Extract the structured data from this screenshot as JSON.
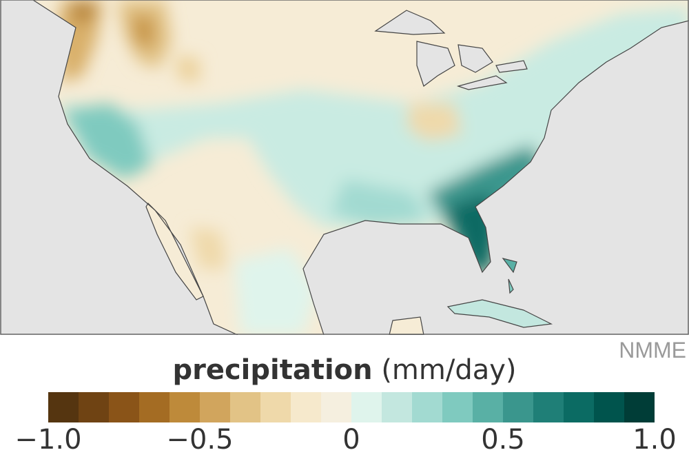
{
  "credit": "NMME",
  "legend": {
    "title_bold": "precipitation",
    "title_unit": "(mm/day)",
    "range": [
      -1.0,
      1.0
    ],
    "colors": [
      "#553510",
      "#6f4313",
      "#8a5418",
      "#a46c23",
      "#be8a3a",
      "#d1a55d",
      "#e2c386",
      "#efd9aa",
      "#f6e9cc",
      "#f5efdf",
      "#dff4ec",
      "#c3e7df",
      "#a2dad1",
      "#7fcabf",
      "#59b0a5",
      "#3a968d",
      "#1f7f77",
      "#0b6b63",
      "#00544d",
      "#003d37"
    ],
    "ticks": [
      {
        "value": -1.0,
        "label": "−1.0"
      },
      {
        "value": -0.5,
        "label": "−0.5"
      },
      {
        "value": 0,
        "label": "0"
      },
      {
        "value": 0.5,
        "label": "0.5"
      },
      {
        "value": 1.0,
        "label": "1.0"
      }
    ]
  },
  "map": {
    "ocean_color": "#e4e4e4",
    "neutral_color": "#f6ecd6",
    "land_color": "#e0e0e0"
  }
}
